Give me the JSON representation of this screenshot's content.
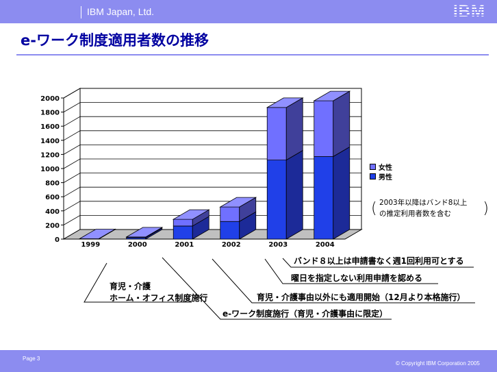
{
  "header": {
    "company": "IBM Japan, Ltd.",
    "logo": "IBM"
  },
  "title": "e-ワーク制度適用者数の推移",
  "chart_data": {
    "type": "bar",
    "stacked": true,
    "three_d": true,
    "categories": [
      "1999",
      "2000",
      "2001",
      "2002",
      "2003",
      "2004"
    ],
    "series": [
      {
        "name": "男性",
        "values": [
          3,
          20,
          185,
          250,
          1120,
          1170
        ],
        "color": "#2040e8"
      },
      {
        "name": "女性",
        "values": [
          2,
          10,
          95,
          205,
          745,
          790
        ],
        "color": "#7070ff"
      }
    ],
    "y_ticks": [
      "0",
      "200",
      "400",
      "600",
      "800",
      "1000",
      "1200",
      "1400",
      "1600",
      "1800",
      "2000"
    ],
    "ylim": [
      0,
      2000
    ],
    "grid": true,
    "legend_position": "right",
    "legend_order": [
      "女性",
      "男性"
    ]
  },
  "note": {
    "line1": "2003年以降はバンド8以上",
    "line2": "の推定利用者数を含む",
    "open_paren": "(",
    "close_paren": ")"
  },
  "timeline": {
    "ann1_line1": "育児・介護",
    "ann1_line2": "ホーム・オフィス制度施行",
    "ann2": "e-ワーク制度施行（育児・介護事由に限定）",
    "ann3": "育児・介護事由以外にも適用開始（12月より本格施行）",
    "ann4": "曜日を指定しない利用申請を認める",
    "ann5": "バンド８以上は申請書なく週1回利用可とする"
  },
  "footer": {
    "page": "Page 3",
    "copyright": "© Copyright IBM Corporation 2005"
  }
}
